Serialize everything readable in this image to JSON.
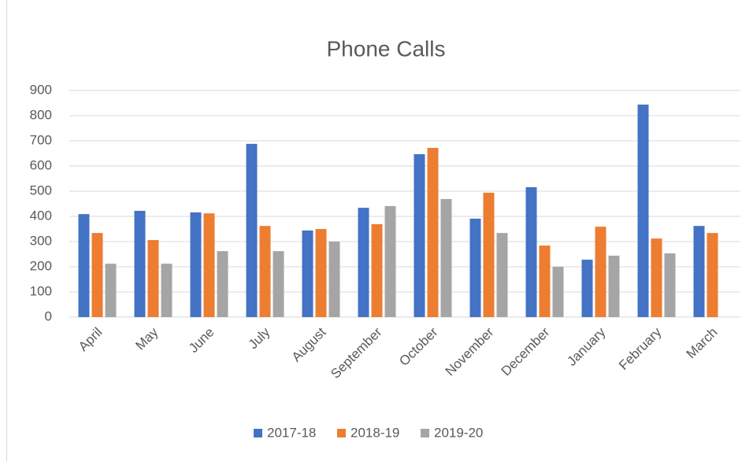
{
  "chart_data": {
    "type": "bar",
    "title": "Phone Calls",
    "categories": [
      "April",
      "May",
      "June",
      "July",
      "August",
      "September",
      "October",
      "November",
      "December",
      "January",
      "February",
      "March"
    ],
    "series": [
      {
        "name": "2017-18",
        "color": "#4472c4",
        "values": [
          409,
          422,
          416,
          688,
          344,
          434,
          647,
          391,
          516,
          228,
          844,
          362
        ]
      },
      {
        "name": "2018-19",
        "color": "#ed7d31",
        "values": [
          334,
          306,
          412,
          362,
          350,
          369,
          672,
          494,
          284,
          359,
          312,
          334
        ]
      },
      {
        "name": "2019-20",
        "color": "#a5a5a5",
        "values": [
          212,
          212,
          262,
          262,
          300,
          441,
          469,
          334,
          200,
          244,
          253,
          null
        ]
      }
    ],
    "ylim": [
      0,
      900
    ],
    "yticks": [
      0,
      100,
      200,
      300,
      400,
      500,
      600,
      700,
      800,
      900
    ],
    "grid": true,
    "legend": "bottom"
  }
}
